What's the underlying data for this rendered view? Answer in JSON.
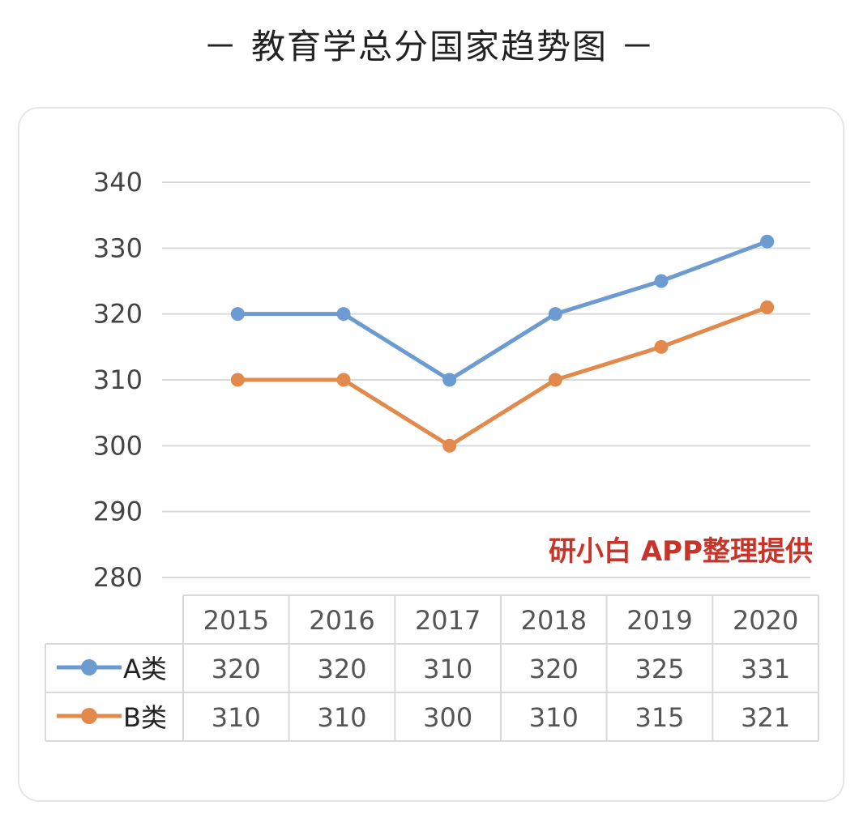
{
  "title": "－ 教育学总分国家趋势图 －",
  "watermark": "研小白 APP整理提供",
  "colors": {
    "series_a": "#6b9bd1",
    "series_b": "#e28a4b",
    "grid": "#d9d9d9",
    "table_border": "#d9d9d9",
    "watermark": "#c9342a"
  },
  "chart_data": {
    "type": "line",
    "title": "－ 教育学总分国家趋势图 －",
    "categories": [
      "2015",
      "2016",
      "2017",
      "2018",
      "2019",
      "2020"
    ],
    "yticks": [
      "340",
      "330",
      "320",
      "310",
      "300",
      "290",
      "280"
    ],
    "ylim": [
      280,
      340
    ],
    "grid": true,
    "legend_placement": "table-left",
    "series": [
      {
        "name": "A类",
        "values": [
          320,
          320,
          310,
          320,
          325,
          331
        ],
        "color": "#6b9bd1"
      },
      {
        "name": "B类",
        "values": [
          310,
          310,
          300,
          310,
          315,
          321
        ],
        "color": "#e28a4b"
      }
    ]
  }
}
